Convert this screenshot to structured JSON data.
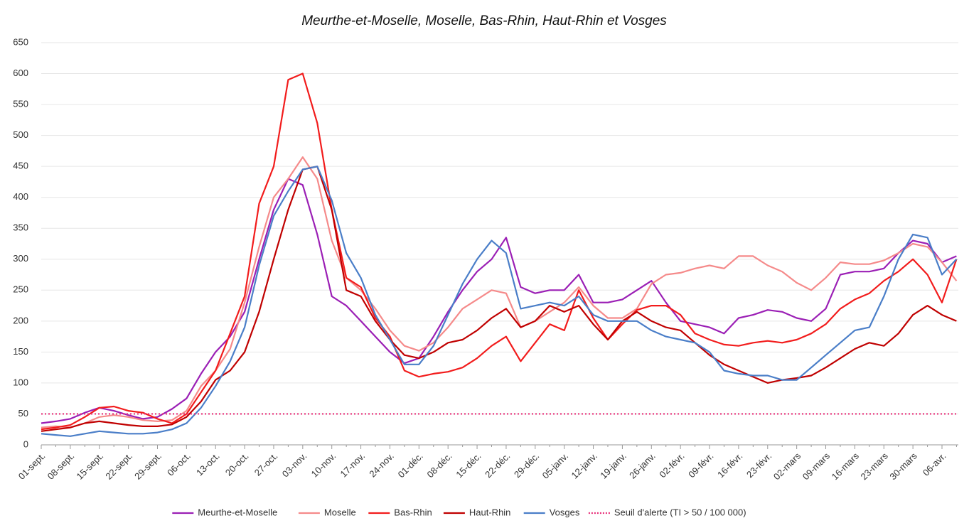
{
  "chart_data": {
    "type": "line",
    "title": "Meurthe-et-Moselle, Moselle, Bas-Rhin, Haut-Rhin et Vosges",
    "categories": [
      "01-sept.",
      null,
      "08-sept.",
      null,
      "15-sept.",
      null,
      "22-sept.",
      null,
      "29-sept.",
      null,
      "06-oct.",
      null,
      "13-oct.",
      null,
      "20-oct.",
      null,
      "27-oct.",
      null,
      "03-nov.",
      null,
      "10-nov.",
      null,
      "17-nov.",
      null,
      "24-nov.",
      null,
      "01-déc.",
      null,
      "08-déc.",
      null,
      "15-déc.",
      null,
      "22-déc.",
      null,
      "29-déc.",
      null,
      "05-janv.",
      null,
      "12-janv.",
      null,
      "19-janv.",
      null,
      "26-janv.",
      null,
      "02-févr.",
      null,
      "09-févr.",
      null,
      "16-févr.",
      null,
      "23-févr.",
      null,
      "02-mars",
      null,
      "09-mars",
      null,
      "16-mars",
      null,
      "23-mars",
      null,
      "30-mars",
      null,
      "06-avr.",
      null
    ],
    "series": [
      {
        "name": "Meurthe-et-Moselle",
        "color": "#9b1fb5",
        "values": [
          35,
          38,
          42,
          52,
          60,
          55,
          48,
          42,
          45,
          58,
          75,
          115,
          150,
          175,
          215,
          300,
          380,
          430,
          420,
          340,
          240,
          225,
          200,
          175,
          150,
          132,
          140,
          175,
          215,
          250,
          280,
          300,
          335,
          255,
          245,
          250,
          250,
          275,
          230,
          230,
          235,
          250,
          265,
          230,
          200,
          195,
          190,
          180,
          205,
          210,
          218,
          215,
          205,
          200,
          220,
          275,
          280,
          280,
          285,
          310,
          330,
          325,
          295,
          305
        ]
      },
      {
        "name": "Moselle",
        "color": "#f58a8a",
        "values": [
          28,
          30,
          28,
          35,
          45,
          48,
          45,
          40,
          38,
          40,
          55,
          95,
          120,
          155,
          230,
          320,
          400,
          430,
          465,
          430,
          330,
          270,
          250,
          220,
          185,
          160,
          152,
          165,
          190,
          220,
          235,
          250,
          245,
          190,
          200,
          215,
          230,
          255,
          225,
          205,
          205,
          220,
          260,
          275,
          278,
          285,
          290,
          285,
          305,
          305,
          290,
          280,
          262,
          250,
          270,
          295,
          292,
          292,
          298,
          310,
          325,
          320,
          295,
          265
        ]
      },
      {
        "name": "Bas-Rhin",
        "color": "#f21c1c",
        "values": [
          25,
          28,
          32,
          45,
          60,
          62,
          55,
          52,
          42,
          35,
          50,
          85,
          120,
          180,
          240,
          390,
          450,
          590,
          600,
          520,
          380,
          270,
          255,
          205,
          175,
          120,
          110,
          115,
          118,
          125,
          140,
          160,
          175,
          135,
          165,
          195,
          185,
          250,
          205,
          170,
          195,
          218,
          225,
          225,
          210,
          180,
          170,
          162,
          160,
          165,
          168,
          165,
          170,
          180,
          195,
          220,
          235,
          245,
          265,
          280,
          300,
          275,
          230,
          300
        ]
      },
      {
        "name": "Haut-Rhin",
        "color": "#c00000",
        "values": [
          22,
          25,
          28,
          35,
          38,
          35,
          32,
          30,
          30,
          33,
          45,
          70,
          105,
          120,
          150,
          215,
          300,
          380,
          445,
          450,
          380,
          250,
          240,
          200,
          170,
          145,
          140,
          150,
          165,
          170,
          185,
          205,
          220,
          190,
          200,
          225,
          215,
          225,
          195,
          170,
          200,
          215,
          200,
          190,
          185,
          165,
          145,
          130,
          120,
          110,
          100,
          105,
          108,
          112,
          125,
          140,
          155,
          165,
          160,
          180,
          210,
          225,
          210,
          200
        ]
      },
      {
        "name": "Vosges",
        "color": "#4a7ec8",
        "values": [
          18,
          16,
          14,
          18,
          22,
          20,
          18,
          18,
          20,
          25,
          35,
          60,
          95,
          135,
          190,
          290,
          370,
          410,
          445,
          450,
          395,
          310,
          270,
          210,
          170,
          130,
          130,
          160,
          210,
          260,
          300,
          330,
          310,
          220,
          225,
          230,
          225,
          240,
          210,
          200,
          200,
          200,
          185,
          175,
          170,
          165,
          150,
          120,
          115,
          112,
          112,
          105,
          105,
          125,
          145,
          165,
          185,
          190,
          240,
          300,
          340,
          335,
          275,
          300
        ]
      }
    ],
    "threshold": {
      "name": "Seuil d'alerte (TI > 50 / 100 000)",
      "value": 50,
      "color": "#e8307a"
    },
    "ylim": [
      0,
      650
    ],
    "yticks": [
      0,
      50,
      100,
      150,
      200,
      250,
      300,
      350,
      400,
      450,
      500,
      550,
      600,
      650
    ],
    "grid": true
  }
}
